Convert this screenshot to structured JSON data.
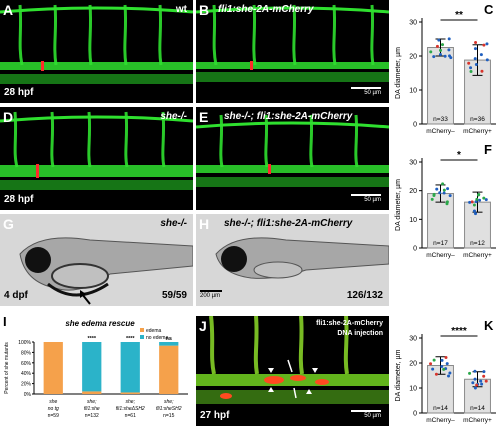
{
  "colors": {
    "vessel_green": "#2fe02f",
    "vessel_red": "#ff2a2a",
    "bar_fill": "#e0e0e0",
    "bar_edge": "#8a8a8a",
    "edema_orange": "#f5a14b",
    "noedema_teal": "#2bb3c9"
  },
  "panels": {
    "A": {
      "letter": "A",
      "label": "wt",
      "stage": "28 hpf"
    },
    "B": {
      "letter": "B",
      "label": "fli1:she-2A-mCherry",
      "scale": "50 µm"
    },
    "D": {
      "letter": "D",
      "label": "she-/-",
      "stage": "28 hpf"
    },
    "E": {
      "letter": "E",
      "label": "she-/-; fli1:she-2A-mCherry",
      "scale": "50 µm"
    },
    "G": {
      "letter": "G",
      "label": "she-/-",
      "stage": "4 dpf",
      "count": "59/59"
    },
    "H": {
      "letter": "H",
      "label": "she-/-; fli1:she-2A-mCherry",
      "scale": "200 µm",
      "count": "126/132"
    },
    "J": {
      "letter": "J",
      "label1": "fli1:she-2A-mCherry",
      "label2": "DNA injection",
      "stage": "27 hpf",
      "scale": "50 µm"
    }
  },
  "chart_data": [
    {
      "id": "C",
      "type": "bar",
      "letter": "C",
      "ylabel": "DA diameter, µm",
      "ylim": [
        0,
        30
      ],
      "yticks": [
        0,
        10,
        20,
        30
      ],
      "categories": [
        "mCherry–",
        "mCherry+"
      ],
      "values": [
        22.5,
        18.8
      ],
      "sd": [
        2.5,
        4.5
      ],
      "n": [
        "n=33",
        "n=36"
      ],
      "significance": "**"
    },
    {
      "id": "F",
      "type": "bar",
      "letter": "F",
      "ylabel": "DA diameter, µm",
      "ylim": [
        0,
        30
      ],
      "yticks": [
        0,
        10,
        20,
        30
      ],
      "categories": [
        "mCherry–",
        "mCherry+"
      ],
      "values": [
        19.0,
        16.0
      ],
      "sd": [
        3.0,
        3.5
      ],
      "n": [
        "n=17",
        "n=12"
      ],
      "significance": "*"
    },
    {
      "id": "K",
      "type": "bar",
      "letter": "K",
      "ylabel": "DA diameter, µm",
      "ylim": [
        0,
        30
      ],
      "yticks": [
        0,
        10,
        20,
        30
      ],
      "categories": [
        "mCherry–",
        "mCherry+"
      ],
      "values": [
        19.0,
        13.5
      ],
      "sd": [
        3.5,
        3.0
      ],
      "n": [
        "n=14",
        "n=14"
      ],
      "significance": "****"
    },
    {
      "id": "I",
      "type": "bar",
      "letter": "I",
      "title": "she edema rescue",
      "ylabel": "Percent of she mutants",
      "yticks": [
        "0%",
        "20%",
        "40%",
        "60%",
        "80%",
        "100%"
      ],
      "legend": [
        "edema",
        "no edema"
      ],
      "categories": [
        {
          "line1": "she",
          "line2": "no tg",
          "n": "n=59",
          "sig": ""
        },
        {
          "line1": "she;",
          "line2": "fli1:she",
          "n": "n=132",
          "sig": "****"
        },
        {
          "line1": "she;",
          "line2": "fli1:sheΔSH2",
          "n": "n=61",
          "sig": "****"
        },
        {
          "line1": "she;",
          "line2": "fli1:sheSH2",
          "n": "n=15",
          "sig": "ns"
        }
      ],
      "series": [
        {
          "name": "edema",
          "values": [
            100,
            5,
            3,
            93
          ]
        },
        {
          "name": "no edema",
          "values": [
            0,
            95,
            97,
            7
          ]
        }
      ]
    }
  ]
}
